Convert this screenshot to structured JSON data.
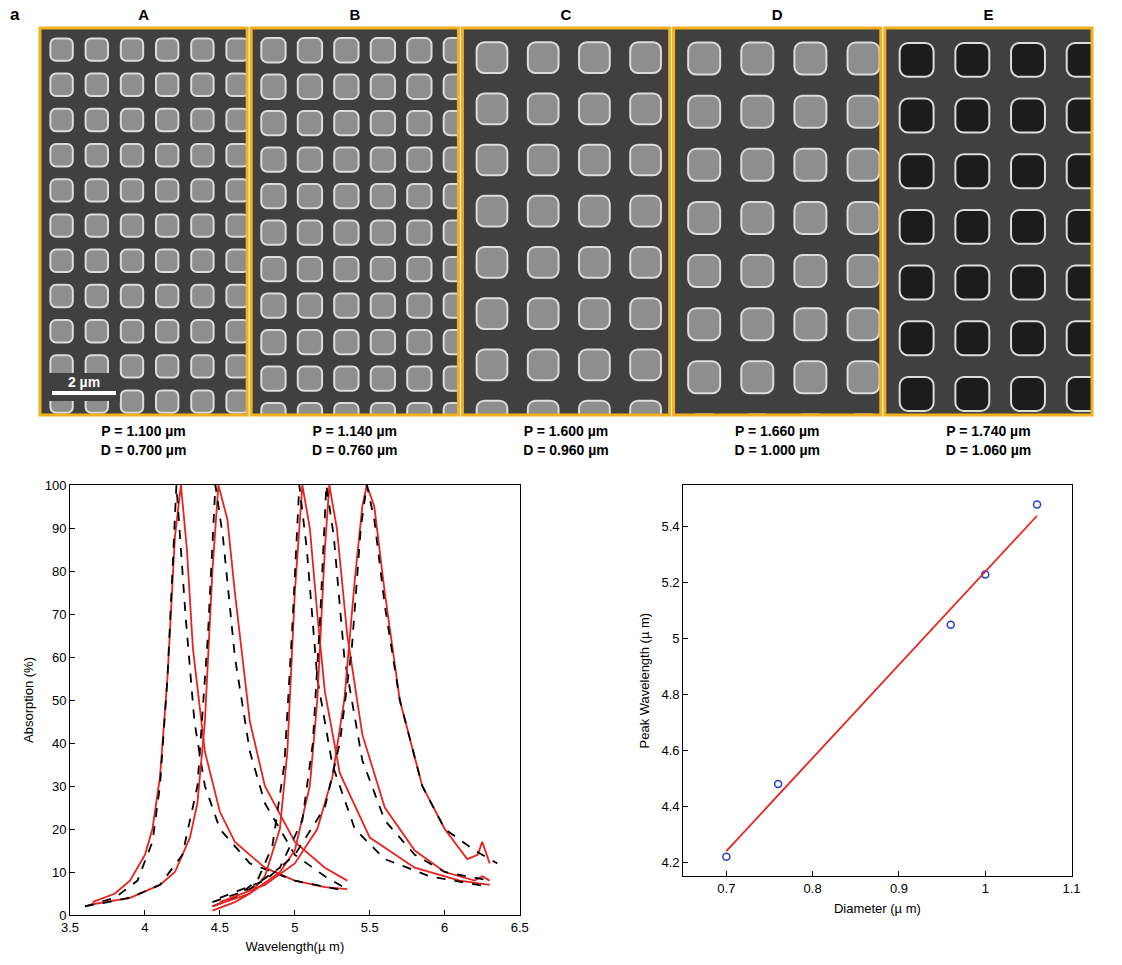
{
  "panel_label": "a",
  "scale_bar": {
    "length": 2,
    "label": "2 µm"
  },
  "sem_images": [
    {
      "label": "A",
      "period": 1.1,
      "diameter": 0.7,
      "period_label": "P = 1.100 µm",
      "diameter_label": "D = 0.700 µm",
      "color": "#8e8e8e"
    },
    {
      "label": "B",
      "period": 1.14,
      "diameter": 0.76,
      "period_label": "P = 1.140 µm",
      "diameter_label": "D = 0.760 µm",
      "color": "#8e8e8e"
    },
    {
      "label": "C",
      "period": 1.6,
      "diameter": 0.96,
      "period_label": "P = 1.600 µm",
      "diameter_label": "D = 0.960 µm",
      "color": "#8e8e8e"
    },
    {
      "label": "D",
      "period": 1.66,
      "diameter": 1.0,
      "period_label": "P = 1.660 µm",
      "diameter_label": "D = 1.000 µm",
      "color": "#8e8e8e"
    },
    {
      "label": "E",
      "period": 1.74,
      "diameter": 1.06,
      "period_label": "P = 1.740 µm",
      "diameter_label": "D = 1.060 µm",
      "color": "#1c1c1c"
    }
  ],
  "chart_data": [
    {
      "type": "line",
      "x_label": "Wavelength(µ m)",
      "y_label": "Absorption (%)",
      "xlim": [
        3.5,
        6.5
      ],
      "xticks": [
        3.5,
        4,
        4.5,
        5,
        5.5,
        6,
        6.5
      ],
      "ylim": [
        0,
        100
      ],
      "yticks": [
        0,
        10,
        20,
        30,
        40,
        50,
        60,
        70,
        80,
        90,
        100
      ],
      "grid": false,
      "series": [
        {
          "color": "#e8231f",
          "line_style": "solid",
          "x": [
            3.65,
            3.8,
            3.9,
            4.0,
            4.05,
            4.1,
            4.15,
            4.2,
            4.24,
            4.28,
            4.32,
            4.4,
            4.5,
            4.6,
            4.8,
            5.0,
            5.2,
            5.35
          ],
          "values": [
            3,
            5,
            8,
            14,
            20,
            32,
            55,
            88,
            100,
            85,
            62,
            38,
            24,
            17,
            11,
            8,
            6.5,
            6
          ]
        },
        {
          "color": "#000000",
          "line_style": "dash",
          "x": [
            3.6,
            3.8,
            3.95,
            4.05,
            4.1,
            4.15,
            4.21,
            4.27,
            4.33,
            4.4,
            4.5,
            4.7,
            5.0,
            5.35
          ],
          "values": [
            2,
            4,
            8,
            17,
            30,
            55,
            100,
            70,
            45,
            30,
            20,
            12,
            8,
            5.5
          ]
        },
        {
          "color": "#e8231f",
          "line_style": "solid",
          "x": [
            3.65,
            3.9,
            4.1,
            4.2,
            4.3,
            4.35,
            4.4,
            4.45,
            4.49,
            4.55,
            4.6,
            4.7,
            4.8,
            5.0,
            5.2,
            5.35
          ],
          "values": [
            2.5,
            4,
            7,
            10,
            18,
            26,
            45,
            80,
            100,
            92,
            75,
            45,
            30,
            17,
            11,
            8
          ]
        },
        {
          "color": "#000000",
          "line_style": "dash",
          "x": [
            3.6,
            3.9,
            4.1,
            4.25,
            4.35,
            4.42,
            4.47,
            4.52,
            4.6,
            4.7,
            4.8,
            5.0,
            5.2,
            5.35
          ],
          "values": [
            2,
            4,
            7,
            14,
            30,
            65,
            100,
            88,
            60,
            38,
            26,
            14,
            9,
            6
          ]
        },
        {
          "color": "#e8231f",
          "line_style": "solid",
          "x": [
            4.45,
            4.6,
            4.7,
            4.8,
            4.9,
            4.95,
            5.0,
            5.05,
            5.1,
            5.15,
            5.2,
            5.3,
            5.5,
            5.8,
            6.1,
            6.3
          ],
          "values": [
            1,
            3,
            5,
            9,
            20,
            38,
            75,
            100,
            90,
            70,
            52,
            33,
            18,
            11,
            8,
            7
          ]
        },
        {
          "color": "#000000",
          "line_style": "dash",
          "x": [
            4.45,
            4.6,
            4.75,
            4.85,
            4.93,
            4.98,
            5.03,
            5.08,
            5.15,
            5.25,
            5.4,
            5.6,
            5.9,
            6.2,
            6.3
          ],
          "values": [
            2,
            4,
            8,
            16,
            35,
            65,
            100,
            85,
            55,
            35,
            20,
            13,
            9,
            7,
            6.5
          ]
        },
        {
          "color": "#e8231f",
          "line_style": "solid",
          "x": [
            4.45,
            4.7,
            4.9,
            5.0,
            5.1,
            5.15,
            5.2,
            5.23,
            5.28,
            5.35,
            5.45,
            5.6,
            5.8,
            6.0,
            6.2,
            6.25,
            6.3
          ],
          "values": [
            2,
            5,
            10,
            15,
            30,
            50,
            85,
            100,
            90,
            65,
            42,
            25,
            15,
            10,
            8,
            9,
            8
          ]
        },
        {
          "color": "#000000",
          "line_style": "dash",
          "x": [
            4.45,
            4.7,
            4.9,
            5.05,
            5.12,
            5.17,
            5.21,
            5.26,
            5.33,
            5.45,
            5.6,
            5.8,
            6.0,
            6.3
          ],
          "values": [
            3,
            6,
            11,
            22,
            40,
            70,
            100,
            88,
            60,
            36,
            22,
            14,
            10,
            8
          ]
        },
        {
          "color": "#e8231f",
          "line_style": "solid",
          "x": [
            4.5,
            4.8,
            5.0,
            5.15,
            5.25,
            5.33,
            5.4,
            5.45,
            5.48,
            5.53,
            5.6,
            5.7,
            5.85,
            6.0,
            6.15,
            6.22,
            6.25,
            6.3
          ],
          "values": [
            3,
            7,
            12,
            20,
            32,
            50,
            78,
            95,
            100,
            95,
            75,
            50,
            30,
            20,
            13,
            14,
            17,
            12
          ]
        },
        {
          "color": "#000000",
          "line_style": "dash",
          "x": [
            4.5,
            4.8,
            5.0,
            5.2,
            5.3,
            5.38,
            5.44,
            5.48,
            5.53,
            5.6,
            5.7,
            5.85,
            6.0,
            6.2,
            6.35
          ],
          "values": [
            4,
            8,
            14,
            25,
            40,
            62,
            90,
            100,
            92,
            72,
            50,
            30,
            20,
            15,
            12
          ]
        }
      ]
    },
    {
      "type": "scatter",
      "x_label": "Diameter (µ m)",
      "y_label": "Peak Wavelength (µ m)",
      "xlim": [
        0.65,
        1.1
      ],
      "xticks": [
        0.7,
        0.8,
        0.9,
        1,
        1.1
      ],
      "ylim": [
        4.15,
        5.55
      ],
      "yticks": [
        4.2,
        4.4,
        4.6,
        4.8,
        5,
        5.2,
        5.4
      ],
      "grid": false,
      "series": [
        {
          "type": "scatter",
          "marker": "circle-open",
          "color": "#1f3fd0",
          "x": [
            0.7,
            0.76,
            0.96,
            1.0,
            1.06
          ],
          "values": [
            4.22,
            4.48,
            5.05,
            5.23,
            5.48
          ]
        },
        {
          "type": "line",
          "line_style": "solid",
          "color": "#e8231f",
          "x": [
            0.7,
            1.06
          ],
          "values": [
            4.24,
            5.44
          ]
        }
      ]
    }
  ]
}
